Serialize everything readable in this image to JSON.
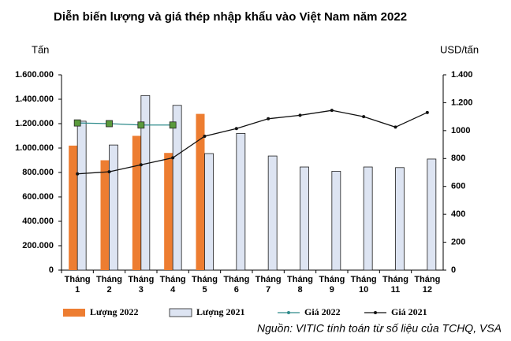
{
  "chart_data": {
    "type": "bar-line",
    "title": "Diễn biến lượng và giá thép nhập khẩu vào Việt Nam năm 2022",
    "y_label": "Tấn",
    "y2_label": "USD/tấn",
    "source": "Nguồn: VITIC tính toán từ số liệu của TCHQ, VSA",
    "categories": [
      "Tháng 1",
      "Tháng 2",
      "Tháng 3",
      "Tháng 4",
      "Tháng 5",
      "Tháng 6",
      "Tháng 7",
      "Tháng 8",
      "Tháng 9",
      "Tháng 10",
      "Tháng 11",
      "Tháng 12"
    ],
    "series": [
      {
        "name": "Lượng 2022",
        "kind": "bar",
        "color": "#ed7d31",
        "values": [
          1020000,
          900000,
          1100000,
          960000,
          1280000,
          null,
          null,
          null,
          null,
          null,
          null,
          null
        ]
      },
      {
        "name": "Lượng 2021",
        "kind": "bar",
        "color": "#dde4f2",
        "border": "#1f1f1f",
        "values": [
          1220000,
          1025000,
          1430000,
          1350000,
          955000,
          1120000,
          935000,
          845000,
          810000,
          845000,
          840000,
          910000
        ]
      },
      {
        "name": "Giá 2022",
        "kind": "line",
        "axis": "y2",
        "color": "#2e8b8b",
        "marker_color": "#5a9a3c",
        "values": [
          1055,
          1050,
          1040,
          1040,
          null,
          null,
          null,
          null,
          null,
          null,
          null,
          null
        ]
      },
      {
        "name": "Giá 2021",
        "kind": "line",
        "axis": "y2",
        "color": "#111111",
        "values": [
          690,
          705,
          755,
          805,
          960,
          1015,
          1085,
          1110,
          1145,
          1100,
          1025,
          1130
        ]
      }
    ],
    "ylim": [
      0,
      1600000
    ],
    "yticks": [
      0,
      {
        "value": 200000,
        "label": "200.000"
      },
      {
        "value": 400000,
        "label": "400.000"
      },
      {
        "value": 600000,
        "label": "600.000"
      },
      {
        "value": 800000,
        "label": "800.000"
      },
      {
        "value": 1000000,
        "label": "1.000.000"
      },
      {
        "value": 1200000,
        "label": "1.200.000"
      },
      {
        "value": 1400000,
        "label": "1.400.000"
      },
      {
        "value": 1600000,
        "label": "1.600.000"
      }
    ],
    "y2lim": [
      0,
      1400
    ],
    "y2ticks": [
      0,
      200,
      400,
      600,
      800,
      1000,
      {
        "value": 1200,
        "label": "1.200"
      },
      {
        "value": 1400,
        "label": "1.400"
      }
    ],
    "grid": false,
    "legend": "bottom"
  }
}
